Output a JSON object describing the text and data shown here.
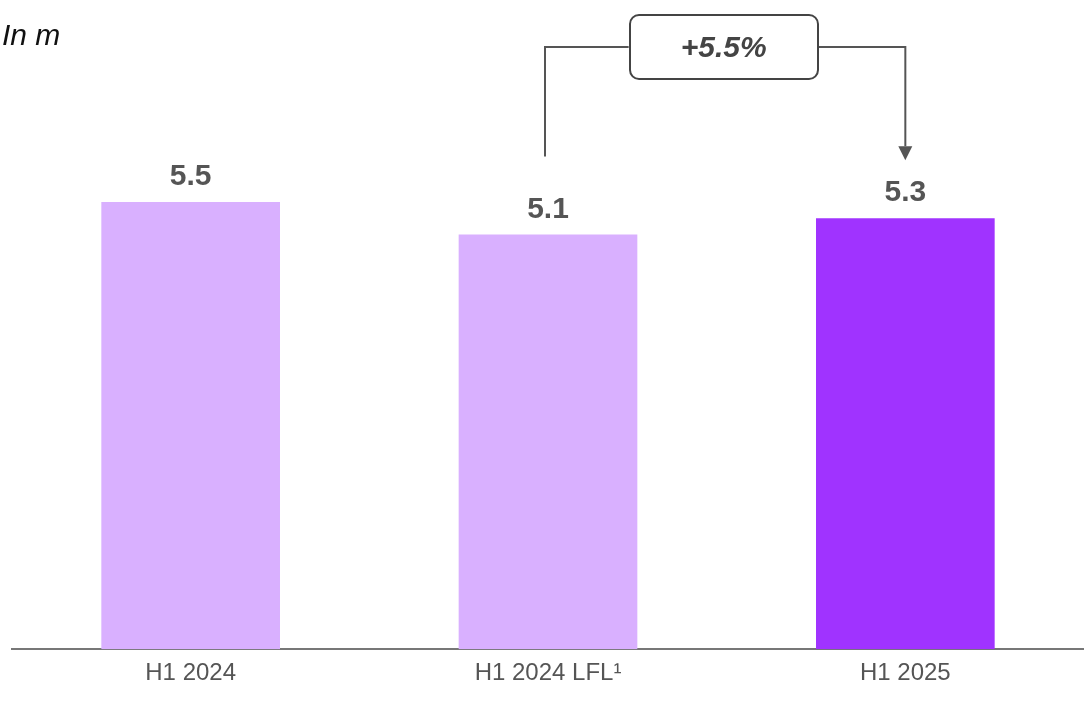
{
  "chart_data": {
    "type": "bar",
    "subtitle": "In m",
    "categories": [
      "H1 2024",
      "H1 2024 LFL¹",
      "H1 2025"
    ],
    "values": [
      5.5,
      5.1,
      5.3
    ],
    "colors": [
      "#d9b0ff",
      "#d9b0ff",
      "#a033ff"
    ],
    "data_labels": true,
    "tick_labels": "x",
    "grid": false,
    "legend": false,
    "annotations": [
      "+5.5%"
    ]
  }
}
